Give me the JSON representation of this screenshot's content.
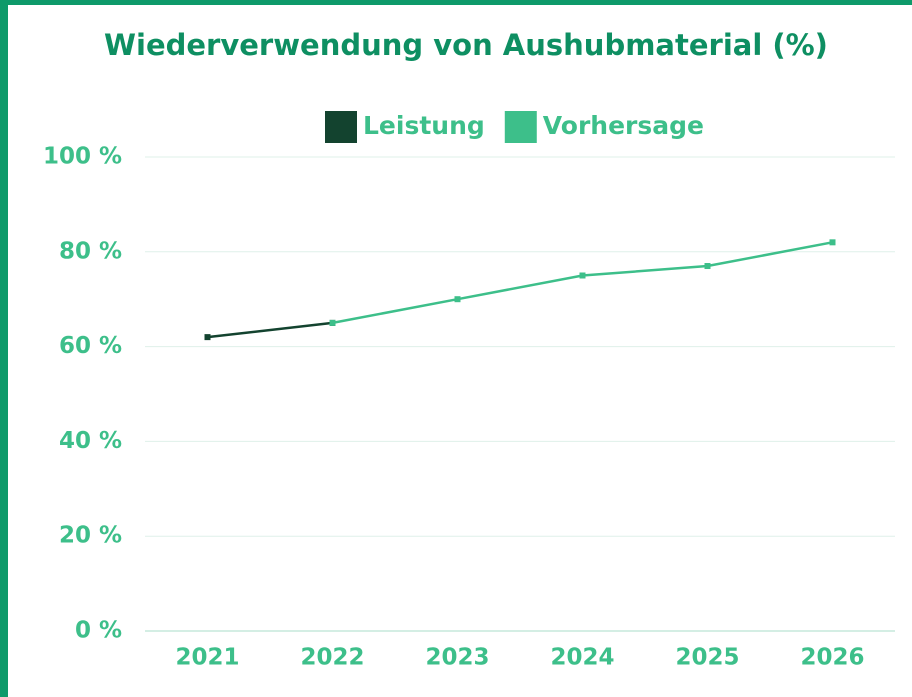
{
  "chart_data": {
    "type": "line",
    "title": "Wiederverwendung von Aushubmaterial (%)",
    "categories": [
      "2021",
      "2022",
      "2023",
      "2024",
      "2025",
      "2026"
    ],
    "series": [
      {
        "name": "Leistung",
        "color": "#13432f",
        "values": [
          62,
          65,
          null,
          null,
          null,
          null
        ]
      },
      {
        "name": "Vorhersage",
        "color": "#3dbf8a",
        "values": [
          null,
          65,
          70,
          75,
          77,
          82
        ]
      }
    ],
    "ylim": [
      0,
      100
    ],
    "yticks": [
      {
        "value": 0,
        "label": "0 %"
      },
      {
        "value": 20,
        "label": "20 %"
      },
      {
        "value": 40,
        "label": "40 %"
      },
      {
        "value": 60,
        "label": "60 %"
      },
      {
        "value": 80,
        "label": "80 %"
      },
      {
        "value": 100,
        "label": "100 %"
      }
    ],
    "grid": true,
    "legend": "top"
  }
}
